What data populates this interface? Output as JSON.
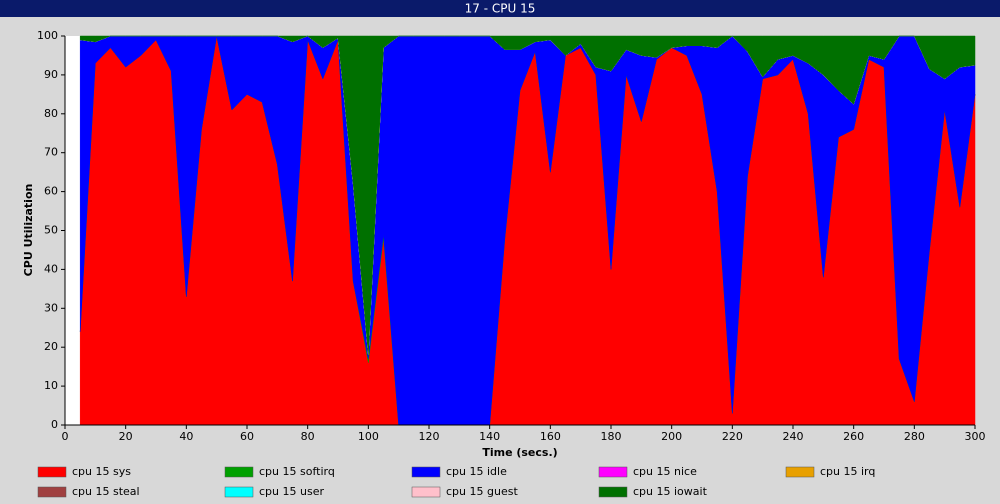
{
  "chart_data": {
    "type": "stacked_area",
    "title": "17 - CPU 15",
    "xlabel": "Time (secs.)",
    "ylabel": "CPU Utilization",
    "x": [
      5,
      10,
      15,
      20,
      25,
      30,
      35,
      40,
      45,
      50,
      55,
      60,
      65,
      70,
      75,
      80,
      85,
      90,
      95,
      100,
      105,
      110,
      115,
      120,
      125,
      130,
      135,
      140,
      145,
      150,
      155,
      160,
      165,
      170,
      175,
      180,
      185,
      190,
      195,
      200,
      205,
      210,
      215,
      220,
      225,
      230,
      235,
      240,
      245,
      250,
      255,
      260,
      265,
      270,
      275,
      280,
      285,
      290,
      295,
      300
    ],
    "xlim": [
      0,
      300
    ],
    "xticks": [
      0,
      20,
      40,
      60,
      80,
      100,
      120,
      140,
      160,
      180,
      200,
      220,
      240,
      260,
      280,
      300
    ],
    "ylim": [
      0,
      100
    ],
    "yticks": [
      0,
      10,
      20,
      30,
      40,
      50,
      60,
      70,
      80,
      90,
      100
    ],
    "grid": false,
    "series": [
      {
        "name": "cpu 15 sys",
        "color": "#ff0000",
        "values": [
          24,
          93,
          97,
          92,
          95,
          99,
          91,
          33,
          76,
          100,
          81,
          85,
          83,
          67,
          37,
          99,
          89,
          99,
          37,
          16,
          48,
          0,
          0,
          0,
          0,
          0,
          0,
          0,
          48,
          86,
          96,
          65,
          95,
          97,
          90,
          40,
          90,
          78,
          94,
          97,
          95,
          85,
          60,
          3,
          64,
          89,
          90,
          94,
          80,
          38,
          74,
          76,
          94,
          92,
          17,
          6,
          45,
          81,
          56,
          85
        ]
      },
      {
        "name": "cpu 15 softirq",
        "color": "#00a000",
        "values": [
          0,
          0,
          0,
          0,
          0,
          0,
          0,
          0,
          0,
          0,
          0,
          0,
          0,
          0,
          0,
          0,
          0,
          0,
          0,
          1,
          1,
          0,
          0,
          0,
          0,
          0,
          0,
          0,
          0,
          0,
          0,
          0,
          0,
          0,
          0,
          0,
          0,
          0,
          0,
          0,
          0,
          0,
          0,
          0,
          0,
          0,
          0,
          0,
          0,
          0,
          0,
          0,
          0,
          0,
          0,
          0,
          0,
          0,
          0,
          0
        ]
      },
      {
        "name": "cpu 15 idle",
        "color": "#0000ff",
        "values": [
          75,
          5.5,
          3,
          8,
          5,
          1,
          9,
          67,
          24,
          0,
          19,
          15,
          17,
          33,
          61.5,
          1,
          8,
          0.5,
          25,
          1,
          48,
          100,
          100,
          100,
          100,
          100,
          100,
          100,
          48.5,
          10.5,
          2.5,
          34,
          0,
          1,
          2,
          51,
          6.5,
          17,
          0.5,
          0,
          2.5,
          12.5,
          37,
          97,
          32,
          0.5,
          4,
          1,
          13,
          52,
          12,
          6.5,
          1,
          2,
          83,
          94,
          46.5,
          8,
          36,
          7.5
        ]
      },
      {
        "name": "cpu 15 nice",
        "color": "#ff00ff",
        "values": [
          0,
          0,
          0,
          0,
          0,
          0,
          0,
          0,
          0,
          0,
          0,
          0,
          0,
          0,
          0,
          0,
          0,
          0,
          0,
          0,
          0,
          0,
          0,
          0,
          0,
          0,
          0,
          0,
          0,
          0,
          0,
          0,
          0,
          0,
          0,
          0,
          0,
          0,
          0,
          0,
          0,
          0,
          0,
          0,
          0,
          0,
          0,
          0,
          0,
          0,
          0,
          0,
          0,
          0,
          0,
          0,
          0,
          0,
          0,
          0
        ]
      },
      {
        "name": "cpu 15 irq",
        "color": "#e8a000",
        "values": [
          0,
          0,
          0,
          0,
          0,
          0,
          0,
          0,
          0,
          0,
          0,
          0,
          0,
          0,
          0,
          0,
          0,
          0,
          0,
          0,
          0,
          0,
          0,
          0,
          0,
          0,
          0,
          0,
          0,
          0,
          0,
          0,
          0,
          0,
          0,
          0,
          0,
          0,
          0,
          0,
          0,
          0,
          0,
          0,
          0,
          0,
          0,
          0,
          0,
          0,
          0,
          0,
          0,
          0,
          0,
          0,
          0,
          0,
          0,
          0
        ]
      },
      {
        "name": "cpu 15 steal",
        "color": "#a04040",
        "values": [
          0,
          0,
          0,
          0,
          0,
          0,
          0,
          0,
          0,
          0,
          0,
          0,
          0,
          0,
          0,
          0,
          0,
          0,
          0,
          0,
          0,
          0,
          0,
          0,
          0,
          0,
          0,
          0,
          0,
          0,
          0,
          0,
          0,
          0,
          0,
          0,
          0,
          0,
          0,
          0,
          0,
          0,
          0,
          0,
          0,
          0,
          0,
          0,
          0,
          0,
          0,
          0,
          0,
          0,
          0,
          0,
          0,
          0,
          0,
          0
        ]
      },
      {
        "name": "cpu 15 user",
        "color": "#00ffff",
        "values": [
          0,
          0,
          0,
          0,
          0,
          0,
          0,
          0,
          0,
          0,
          0,
          0,
          0,
          0,
          0,
          0,
          0,
          0,
          0,
          0,
          0,
          0,
          0,
          0,
          0,
          0,
          0,
          0,
          0,
          0,
          0,
          0,
          0,
          0,
          0,
          0,
          0,
          0,
          0,
          0,
          0,
          0,
          0,
          0,
          0,
          0,
          0,
          0,
          0,
          0,
          0,
          0,
          0,
          0,
          0,
          0,
          0,
          0,
          0,
          0
        ]
      },
      {
        "name": "cpu 15 guest",
        "color": "#ffc0cb",
        "values": [
          0,
          0,
          0,
          0,
          0,
          0,
          0,
          0,
          0,
          0,
          0,
          0,
          0,
          0,
          0,
          0,
          0,
          0,
          0,
          0,
          0,
          0,
          0,
          0,
          0,
          0,
          0,
          0,
          0,
          0,
          0,
          0,
          0,
          0,
          0,
          0,
          0,
          0,
          0,
          0,
          0,
          0,
          0,
          0,
          0,
          0,
          0,
          0,
          0,
          0,
          0,
          0,
          0,
          0,
          0,
          0,
          0,
          0,
          0,
          0
        ]
      },
      {
        "name": "cpu 15 iowait",
        "color": "#007000",
        "values": [
          1,
          1.5,
          0,
          0,
          0,
          0,
          0,
          0,
          0,
          0,
          0,
          0,
          0,
          0,
          1.5,
          0,
          3,
          0.5,
          38,
          82,
          3,
          0,
          0,
          0,
          0,
          0,
          0,
          0,
          3.5,
          3.5,
          1.5,
          1,
          5,
          2,
          8,
          9,
          3.5,
          5,
          5.5,
          3,
          2.5,
          2.5,
          3,
          0,
          4,
          10.5,
          6,
          5,
          7,
          10,
          14,
          17.5,
          5,
          6,
          0,
          0,
          8.5,
          11,
          8,
          7.5
        ]
      }
    ]
  }
}
